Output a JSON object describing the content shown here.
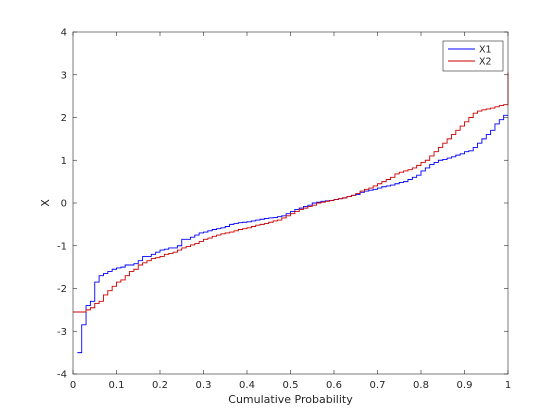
{
  "chart_data": {
    "type": "line",
    "step": true,
    "xlabel": "Cumulative Probability",
    "ylabel": "X",
    "xlim": [
      0,
      1
    ],
    "ylim": [
      -4,
      4
    ],
    "xticks": [
      0,
      0.1,
      0.2,
      0.3,
      0.4,
      0.5,
      0.6,
      0.7,
      0.8,
      0.9,
      1
    ],
    "yticks": [
      -4,
      -3,
      -2,
      -1,
      0,
      1,
      2,
      3,
      4
    ],
    "xtick_labels": [
      "0",
      "0.1",
      "0.2",
      "0.3",
      "0.4",
      "0.5",
      "0.6",
      "0.7",
      "0.8",
      "0.9",
      "1"
    ],
    "ytick_labels": [
      "-4",
      "-3",
      "-2",
      "-1",
      "0",
      "1",
      "2",
      "3",
      "4"
    ],
    "grid": false,
    "legend_position": "top-right",
    "series": [
      {
        "name": "X1",
        "color": "#0000ff",
        "points": [
          [
            0.01,
            -3.5
          ],
          [
            0.02,
            -2.85
          ],
          [
            0.03,
            -2.4
          ],
          [
            0.04,
            -2.3
          ],
          [
            0.05,
            -1.85
          ],
          [
            0.06,
            -1.7
          ],
          [
            0.07,
            -1.65
          ],
          [
            0.08,
            -1.6
          ],
          [
            0.09,
            -1.55
          ],
          [
            0.1,
            -1.52
          ],
          [
            0.11,
            -1.5
          ],
          [
            0.12,
            -1.45
          ],
          [
            0.14,
            -1.42
          ],
          [
            0.15,
            -1.35
          ],
          [
            0.16,
            -1.25
          ],
          [
            0.18,
            -1.2
          ],
          [
            0.19,
            -1.15
          ],
          [
            0.2,
            -1.1
          ],
          [
            0.21,
            -1.08
          ],
          [
            0.22,
            -1.05
          ],
          [
            0.24,
            -1.0
          ],
          [
            0.25,
            -0.85
          ],
          [
            0.27,
            -0.8
          ],
          [
            0.28,
            -0.75
          ],
          [
            0.29,
            -0.7
          ],
          [
            0.3,
            -0.68
          ],
          [
            0.31,
            -0.65
          ],
          [
            0.32,
            -0.62
          ],
          [
            0.33,
            -0.6
          ],
          [
            0.34,
            -0.58
          ],
          [
            0.35,
            -0.55
          ],
          [
            0.36,
            -0.5
          ],
          [
            0.37,
            -0.48
          ],
          [
            0.38,
            -0.46
          ],
          [
            0.39,
            -0.45
          ],
          [
            0.4,
            -0.44
          ],
          [
            0.41,
            -0.42
          ],
          [
            0.42,
            -0.4
          ],
          [
            0.43,
            -0.38
          ],
          [
            0.44,
            -0.36
          ],
          [
            0.45,
            -0.35
          ],
          [
            0.46,
            -0.34
          ],
          [
            0.47,
            -0.32
          ],
          [
            0.48,
            -0.3
          ],
          [
            0.49,
            -0.25
          ],
          [
            0.5,
            -0.2
          ],
          [
            0.51,
            -0.15
          ],
          [
            0.52,
            -0.12
          ],
          [
            0.53,
            -0.08
          ],
          [
            0.54,
            -0.05
          ],
          [
            0.55,
            0.0
          ],
          [
            0.56,
            0.02
          ],
          [
            0.57,
            0.04
          ],
          [
            0.58,
            0.05
          ],
          [
            0.59,
            0.06
          ],
          [
            0.6,
            0.08
          ],
          [
            0.61,
            0.1
          ],
          [
            0.62,
            0.12
          ],
          [
            0.63,
            0.15
          ],
          [
            0.64,
            0.18
          ],
          [
            0.65,
            0.2
          ],
          [
            0.66,
            0.25
          ],
          [
            0.67,
            0.28
          ],
          [
            0.68,
            0.3
          ],
          [
            0.69,
            0.32
          ],
          [
            0.7,
            0.35
          ],
          [
            0.71,
            0.38
          ],
          [
            0.72,
            0.4
          ],
          [
            0.73,
            0.42
          ],
          [
            0.74,
            0.45
          ],
          [
            0.75,
            0.48
          ],
          [
            0.76,
            0.5
          ],
          [
            0.77,
            0.55
          ],
          [
            0.78,
            0.6
          ],
          [
            0.79,
            0.65
          ],
          [
            0.8,
            0.75
          ],
          [
            0.81,
            0.82
          ],
          [
            0.82,
            0.9
          ],
          [
            0.83,
            0.95
          ],
          [
            0.84,
            1.0
          ],
          [
            0.85,
            1.02
          ],
          [
            0.86,
            1.05
          ],
          [
            0.87,
            1.08
          ],
          [
            0.88,
            1.12
          ],
          [
            0.89,
            1.15
          ],
          [
            0.9,
            1.2
          ],
          [
            0.91,
            1.22
          ],
          [
            0.92,
            1.3
          ],
          [
            0.93,
            1.4
          ],
          [
            0.94,
            1.5
          ],
          [
            0.95,
            1.6
          ],
          [
            0.96,
            1.7
          ],
          [
            0.97,
            1.85
          ],
          [
            0.98,
            1.95
          ],
          [
            0.99,
            2.05
          ],
          [
            1.0,
            2.05
          ]
        ]
      },
      {
        "name": "X2",
        "color": "#cc0000",
        "points": [
          [
            0.0,
            -2.55
          ],
          [
            0.01,
            -2.55
          ],
          [
            0.02,
            -2.55
          ],
          [
            0.03,
            -2.5
          ],
          [
            0.04,
            -2.45
          ],
          [
            0.05,
            -2.35
          ],
          [
            0.06,
            -2.3
          ],
          [
            0.07,
            -2.15
          ],
          [
            0.08,
            -2.05
          ],
          [
            0.09,
            -1.95
          ],
          [
            0.1,
            -1.85
          ],
          [
            0.11,
            -1.8
          ],
          [
            0.12,
            -1.7
          ],
          [
            0.13,
            -1.6
          ],
          [
            0.14,
            -1.55
          ],
          [
            0.15,
            -1.45
          ],
          [
            0.16,
            -1.4
          ],
          [
            0.17,
            -1.35
          ],
          [
            0.18,
            -1.3
          ],
          [
            0.19,
            -1.28
          ],
          [
            0.2,
            -1.25
          ],
          [
            0.21,
            -1.2
          ],
          [
            0.22,
            -1.18
          ],
          [
            0.23,
            -1.15
          ],
          [
            0.24,
            -1.1
          ],
          [
            0.25,
            -1.05
          ],
          [
            0.26,
            -1.02
          ],
          [
            0.27,
            -0.98
          ],
          [
            0.28,
            -0.95
          ],
          [
            0.29,
            -0.9
          ],
          [
            0.3,
            -0.85
          ],
          [
            0.31,
            -0.82
          ],
          [
            0.32,
            -0.78
          ],
          [
            0.33,
            -0.75
          ],
          [
            0.34,
            -0.72
          ],
          [
            0.35,
            -0.7
          ],
          [
            0.36,
            -0.68
          ],
          [
            0.37,
            -0.65
          ],
          [
            0.38,
            -0.62
          ],
          [
            0.39,
            -0.6
          ],
          [
            0.4,
            -0.58
          ],
          [
            0.41,
            -0.55
          ],
          [
            0.42,
            -0.52
          ],
          [
            0.43,
            -0.5
          ],
          [
            0.44,
            -0.48
          ],
          [
            0.45,
            -0.45
          ],
          [
            0.46,
            -0.42
          ],
          [
            0.47,
            -0.4
          ],
          [
            0.48,
            -0.35
          ],
          [
            0.49,
            -0.3
          ],
          [
            0.5,
            -0.25
          ],
          [
            0.51,
            -0.2
          ],
          [
            0.52,
            -0.15
          ],
          [
            0.53,
            -0.12
          ],
          [
            0.54,
            -0.08
          ],
          [
            0.55,
            -0.05
          ],
          [
            0.56,
            0.0
          ],
          [
            0.57,
            0.02
          ],
          [
            0.58,
            0.04
          ],
          [
            0.59,
            0.06
          ],
          [
            0.6,
            0.08
          ],
          [
            0.61,
            0.1
          ],
          [
            0.62,
            0.12
          ],
          [
            0.63,
            0.15
          ],
          [
            0.64,
            0.18
          ],
          [
            0.65,
            0.22
          ],
          [
            0.66,
            0.28
          ],
          [
            0.67,
            0.32
          ],
          [
            0.68,
            0.35
          ],
          [
            0.69,
            0.4
          ],
          [
            0.7,
            0.45
          ],
          [
            0.71,
            0.5
          ],
          [
            0.72,
            0.55
          ],
          [
            0.73,
            0.6
          ],
          [
            0.74,
            0.68
          ],
          [
            0.75,
            0.72
          ],
          [
            0.76,
            0.75
          ],
          [
            0.77,
            0.78
          ],
          [
            0.78,
            0.82
          ],
          [
            0.79,
            0.88
          ],
          [
            0.8,
            0.95
          ],
          [
            0.81,
            1.0
          ],
          [
            0.82,
            1.1
          ],
          [
            0.83,
            1.2
          ],
          [
            0.84,
            1.3
          ],
          [
            0.85,
            1.4
          ],
          [
            0.86,
            1.5
          ],
          [
            0.87,
            1.6
          ],
          [
            0.88,
            1.7
          ],
          [
            0.89,
            1.8
          ],
          [
            0.9,
            1.9
          ],
          [
            0.91,
            2.0
          ],
          [
            0.92,
            2.1
          ],
          [
            0.93,
            2.15
          ],
          [
            0.94,
            2.18
          ],
          [
            0.95,
            2.2
          ],
          [
            0.96,
            2.22
          ],
          [
            0.97,
            2.25
          ],
          [
            0.98,
            2.28
          ],
          [
            0.99,
            2.3
          ],
          [
            1.0,
            3.05
          ]
        ]
      }
    ]
  }
}
